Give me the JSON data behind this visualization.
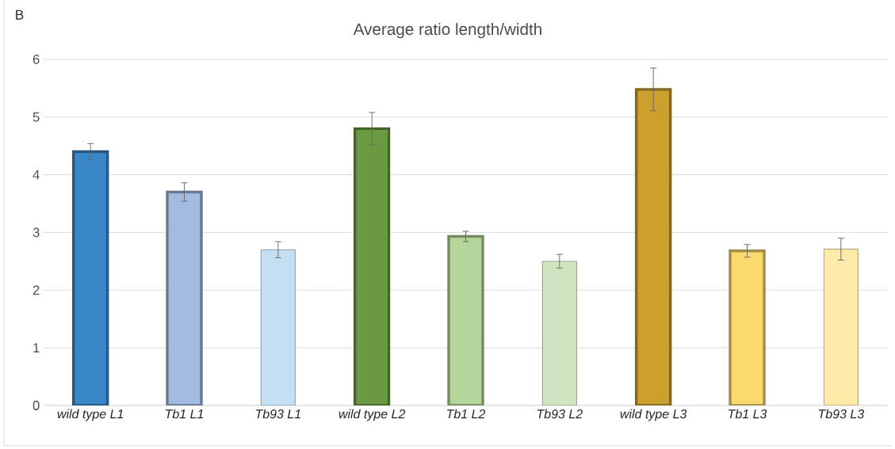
{
  "chart_data": {
    "type": "bar",
    "title": "Average ratio length/width",
    "annotations": [
      "B"
    ],
    "categories": [
      "wild type L1",
      "Tb1 L1",
      "Tb93 L1",
      "wild type L2",
      "Tb1 L2",
      "Tb93 L2",
      "wild type L3",
      "Tb1 L3",
      "Tb93 L3"
    ],
    "values": [
      4.4,
      3.7,
      2.7,
      4.8,
      2.93,
      2.5,
      5.48,
      2.68,
      2.71
    ],
    "errors": [
      0.14,
      0.16,
      0.14,
      0.28,
      0.09,
      0.12,
      0.37,
      0.11,
      0.19
    ],
    "colors": [
      "#3a87c8",
      "#a3bbe0",
      "#c5dff3",
      "#6a9a42",
      "#b5d69a",
      "#d2e5c2",
      "#cca02e",
      "#fbd96e",
      "#fde9a8"
    ],
    "ylim": [
      0,
      6
    ],
    "yticks": [
      0,
      1,
      2,
      3,
      4,
      5,
      6
    ],
    "grid": "y"
  }
}
